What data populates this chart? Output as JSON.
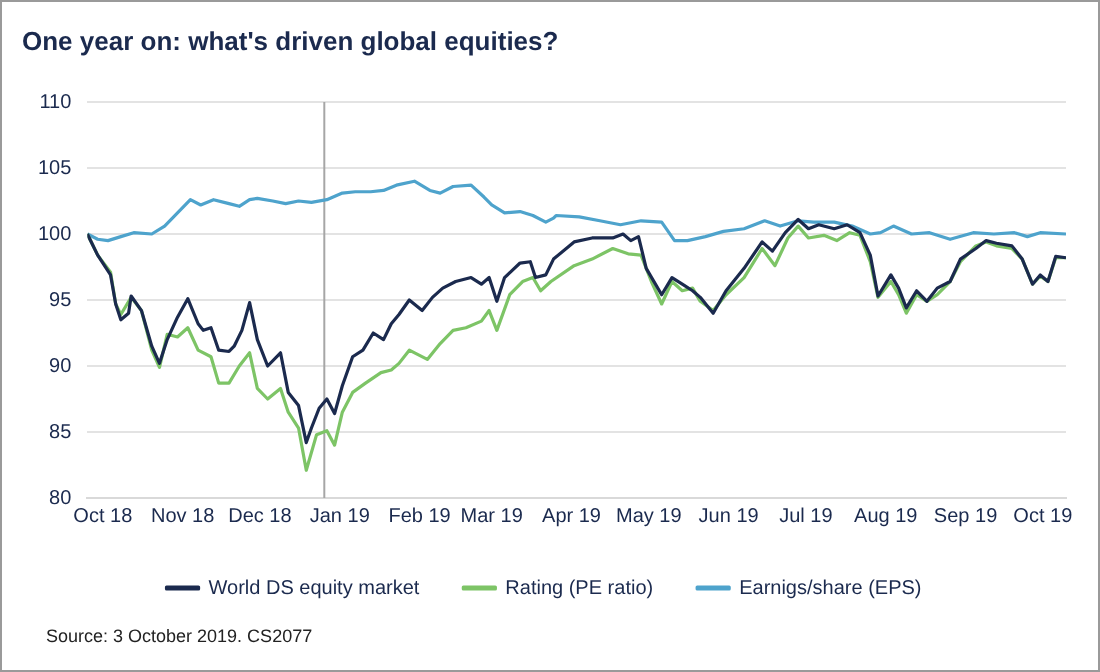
{
  "chart_data": {
    "type": "line",
    "title": "One year on: what's driven global equities?",
    "annotations": [
      "Source: 3 October 2019. CS2077"
    ],
    "xlim": [
      "2018-09-25",
      "2019-10-10"
    ],
    "xticks": [
      {
        "value": "2018-10-01",
        "label": "Oct 18"
      },
      {
        "value": "2018-11-01",
        "label": "Nov 18"
      },
      {
        "value": "2018-12-01",
        "label": "Dec 18"
      },
      {
        "value": "2019-01-01",
        "label": "Jan 19"
      },
      {
        "value": "2019-02-01",
        "label": "Feb 19"
      },
      {
        "value": "2019-03-01",
        "label": "Mar 19"
      },
      {
        "value": "2019-04-01",
        "label": "Apr 19"
      },
      {
        "value": "2019-05-01",
        "label": "May 19"
      },
      {
        "value": "2019-06-01",
        "label": "Jun 19"
      },
      {
        "value": "2019-07-01",
        "label": "Jul 19"
      },
      {
        "value": "2019-08-01",
        "label": "Aug 19"
      },
      {
        "value": "2019-09-01",
        "label": "Sep 19"
      },
      {
        "value": "2019-10-01",
        "label": "Oct 19"
      }
    ],
    "ylim": [
      80,
      110
    ],
    "yticks": [
      80,
      85,
      90,
      95,
      100,
      105,
      110
    ],
    "grid": "y",
    "legend": "bottom",
    "marker": "none",
    "line_style": "solid",
    "ref_lines": [
      {
        "axis": "x",
        "value": "2018-12-26",
        "color": "#a6a6a6"
      }
    ],
    "series": [
      {
        "name": "World DS equity market",
        "color": "#1b2a4e",
        "x": [
          "2018-09-25",
          "2018-09-29",
          "2018-10-04",
          "2018-10-06",
          "2018-10-08",
          "2018-10-11",
          "2018-10-12",
          "2018-10-16",
          "2018-10-20",
          "2018-10-23",
          "2018-10-26",
          "2018-10-30",
          "2018-11-03",
          "2018-11-07",
          "2018-11-09",
          "2018-11-12",
          "2018-11-15",
          "2018-11-19",
          "2018-11-21",
          "2018-11-24",
          "2018-11-27",
          "2018-11-30",
          "2018-12-04",
          "2018-12-09",
          "2018-12-12",
          "2018-12-16",
          "2018-12-19",
          "2018-12-21",
          "2018-12-24",
          "2018-12-27",
          "2018-12-30",
          "2019-01-02",
          "2019-01-06",
          "2019-01-10",
          "2019-01-14",
          "2019-01-18",
          "2019-01-21",
          "2019-01-24",
          "2019-01-28",
          "2019-02-02",
          "2019-02-06",
          "2019-02-10",
          "2019-02-15",
          "2019-02-21",
          "2019-02-25",
          "2019-02-28",
          "2019-03-03",
          "2019-03-06",
          "2019-03-12",
          "2019-03-16",
          "2019-03-18",
          "2019-03-22",
          "2019-03-25",
          "2019-04-02",
          "2019-04-09",
          "2019-04-17",
          "2019-04-21",
          "2019-04-24",
          "2019-04-27",
          "2019-04-30",
          "2019-05-06",
          "2019-05-10",
          "2019-05-14",
          "2019-05-18",
          "2019-05-21",
          "2019-05-26",
          "2019-05-31",
          "2019-06-07",
          "2019-06-14",
          "2019-06-18",
          "2019-06-23",
          "2019-06-28",
          "2019-07-02",
          "2019-07-06",
          "2019-07-12",
          "2019-07-17",
          "2019-07-22",
          "2019-07-26",
          "2019-07-29",
          "2019-08-03",
          "2019-08-06",
          "2019-08-09",
          "2019-08-13",
          "2019-08-17",
          "2019-08-21",
          "2019-08-26",
          "2019-08-30",
          "2019-09-05",
          "2019-09-09",
          "2019-09-13",
          "2019-09-19",
          "2019-09-23",
          "2019-09-27",
          "2019-09-30",
          "2019-10-03",
          "2019-10-06",
          "2019-10-10"
        ],
        "values": [
          100,
          98.4,
          96.9,
          94.7,
          93.5,
          94,
          95.3,
          94.2,
          91.5,
          90.2,
          92,
          93.7,
          95.1,
          93.2,
          92.7,
          92.9,
          91.2,
          91.1,
          91.5,
          92.7,
          94.8,
          92,
          90,
          91,
          88,
          87,
          84.2,
          85.3,
          86.8,
          87.5,
          86.4,
          88.5,
          90.7,
          91.2,
          92.5,
          92,
          93.2,
          93.9,
          95,
          94.2,
          95.2,
          95.9,
          96.4,
          96.7,
          96.2,
          96.7,
          94.9,
          96.7,
          97.8,
          97.9,
          96.7,
          96.9,
          98.1,
          99.4,
          99.7,
          99.7,
          100,
          99.5,
          99.8,
          97.4,
          95.4,
          96.7,
          96.2,
          95.7,
          95.2,
          94,
          95.7,
          97.4,
          99.4,
          98.7,
          100.1,
          101.1,
          100.4,
          100.7,
          100.4,
          100.7,
          100.1,
          98.4,
          95.3,
          96.9,
          95.9,
          94.4,
          95.7,
          94.9,
          95.9,
          96.4,
          98.1,
          98.9,
          99.5,
          99.3,
          99.1,
          98.1,
          96.2,
          96.9,
          96.4,
          98.3,
          98.2
        ]
      },
      {
        "name": "Rating (PE ratio)",
        "color": "#7dc466",
        "x": [
          "2018-09-25",
          "2018-09-29",
          "2018-10-04",
          "2018-10-06",
          "2018-10-08",
          "2018-10-12",
          "2018-10-16",
          "2018-10-20",
          "2018-10-23",
          "2018-10-26",
          "2018-10-30",
          "2018-11-03",
          "2018-11-07",
          "2018-11-12",
          "2018-11-15",
          "2018-11-19",
          "2018-11-23",
          "2018-11-27",
          "2018-11-30",
          "2018-12-04",
          "2018-12-09",
          "2018-12-12",
          "2018-12-16",
          "2018-12-19",
          "2018-12-23",
          "2018-12-27",
          "2018-12-30",
          "2019-01-02",
          "2019-01-06",
          "2019-01-11",
          "2019-01-17",
          "2019-01-21",
          "2019-01-24",
          "2019-01-28",
          "2019-02-04",
          "2019-02-09",
          "2019-02-14",
          "2019-02-19",
          "2019-02-25",
          "2019-02-28",
          "2019-03-03",
          "2019-03-08",
          "2019-03-13",
          "2019-03-17",
          "2019-03-20",
          "2019-03-24",
          "2019-04-02",
          "2019-04-09",
          "2019-04-17",
          "2019-04-23",
          "2019-04-28",
          "2019-05-02",
          "2019-05-06",
          "2019-05-10",
          "2019-05-14",
          "2019-05-18",
          "2019-05-21",
          "2019-05-26",
          "2019-05-31",
          "2019-06-07",
          "2019-06-14",
          "2019-06-19",
          "2019-06-24",
          "2019-06-28",
          "2019-07-02",
          "2019-07-08",
          "2019-07-13",
          "2019-07-18",
          "2019-07-22",
          "2019-07-26",
          "2019-07-29",
          "2019-08-03",
          "2019-08-06",
          "2019-08-09",
          "2019-08-13",
          "2019-08-17",
          "2019-08-21",
          "2019-08-26",
          "2019-08-30",
          "2019-09-05",
          "2019-09-09",
          "2019-09-13",
          "2019-09-19",
          "2019-09-23",
          "2019-09-27",
          "2019-09-30",
          "2019-10-03",
          "2019-10-06",
          "2019-10-10"
        ],
        "values": [
          100,
          98.4,
          97.1,
          94.7,
          93.9,
          95.2,
          94.2,
          91.2,
          89.9,
          92.4,
          92.2,
          92.9,
          91.2,
          90.7,
          88.7,
          88.7,
          90,
          91,
          88.3,
          87.5,
          88.3,
          86.5,
          85.3,
          82.1,
          84.8,
          85.1,
          84,
          86.5,
          88,
          88.7,
          89.5,
          89.7,
          90.2,
          91.2,
          90.5,
          91.7,
          92.7,
          92.9,
          93.4,
          94.2,
          92.7,
          95.4,
          96.4,
          96.7,
          95.7,
          96.4,
          97.6,
          98.1,
          98.9,
          98.5,
          98.4,
          96.4,
          94.7,
          96.4,
          95.7,
          95.9,
          94.9,
          94.2,
          95.4,
          96.7,
          98.9,
          97.6,
          99.7,
          100.6,
          99.7,
          99.9,
          99.5,
          100.1,
          99.9,
          97.9,
          95.2,
          96.4,
          95.4,
          94,
          95.4,
          94.9,
          95.4,
          96.4,
          97.9,
          99.1,
          99.4,
          99.1,
          98.9,
          98.1,
          96.2,
          96.8,
          96.4,
          98.2,
          98.2
        ]
      },
      {
        "name": "Earnigs/share (EPS)",
        "color": "#4ea3cc",
        "x": [
          "2018-09-25",
          "2018-09-29",
          "2018-10-03",
          "2018-10-08",
          "2018-10-13",
          "2018-10-20",
          "2018-10-25",
          "2018-10-30",
          "2018-11-04",
          "2018-11-08",
          "2018-11-13",
          "2018-11-19",
          "2018-11-23",
          "2018-11-27",
          "2018-11-30",
          "2018-12-06",
          "2018-12-11",
          "2018-12-16",
          "2018-12-21",
          "2018-12-27",
          "2019-01-02",
          "2019-01-07",
          "2019-01-13",
          "2019-01-18",
          "2019-01-23",
          "2019-01-30",
          "2019-02-05",
          "2019-02-09",
          "2019-02-14",
          "2019-02-21",
          "2019-02-26",
          "2019-03-01",
          "2019-03-06",
          "2019-03-12",
          "2019-03-17",
          "2019-03-22",
          "2019-03-25",
          "2019-03-26",
          "2019-04-04",
          "2019-04-12",
          "2019-04-20",
          "2019-04-28",
          "2019-05-06",
          "2019-05-11",
          "2019-05-16",
          "2019-05-23",
          "2019-05-30",
          "2019-06-07",
          "2019-06-15",
          "2019-06-21",
          "2019-06-28",
          "2019-07-04",
          "2019-07-12",
          "2019-07-19",
          "2019-07-26",
          "2019-07-30",
          "2019-08-04",
          "2019-08-11",
          "2019-08-18",
          "2019-08-26",
          "2019-09-04",
          "2019-09-12",
          "2019-09-20",
          "2019-09-25",
          "2019-09-30",
          "2019-10-10"
        ],
        "values": [
          100,
          99.6,
          99.5,
          99.8,
          100.1,
          100,
          100.6,
          101.6,
          102.6,
          102.2,
          102.6,
          102.3,
          102.1,
          102.6,
          102.7,
          102.5,
          102.3,
          102.5,
          102.4,
          102.6,
          103.1,
          103.2,
          103.2,
          103.3,
          103.7,
          104,
          103.3,
          103.1,
          103.6,
          103.7,
          102.8,
          102.2,
          101.6,
          101.7,
          101.4,
          100.9,
          101.2,
          101.4,
          101.3,
          101,
          100.7,
          101,
          100.9,
          99.5,
          99.5,
          99.8,
          100.2,
          100.4,
          101,
          100.6,
          101,
          100.9,
          100.9,
          100.6,
          100,
          100.1,
          100.6,
          100,
          100.1,
          99.6,
          100.1,
          100,
          100.1,
          99.8,
          100.1,
          100
        ]
      }
    ]
  }
}
